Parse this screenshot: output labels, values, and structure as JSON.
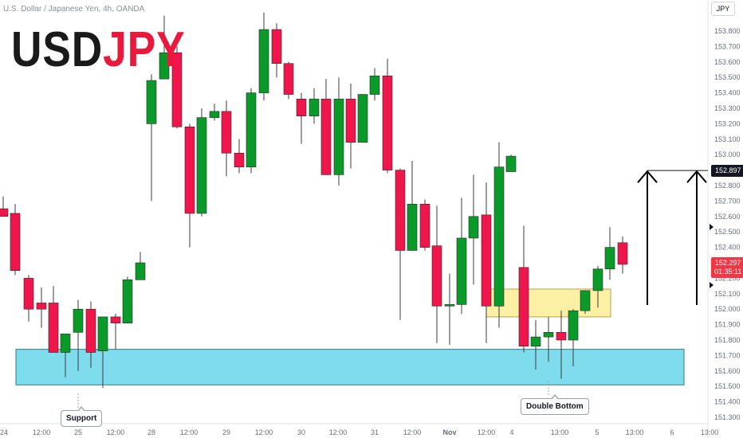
{
  "header": {
    "symbol_line": "U.S. Dollar / Japanese Yen, 4h, OANDA",
    "title_base": "USD",
    "title_quote": "JPY",
    "currency": "JPY"
  },
  "colors": {
    "bull": "#0a9a2a",
    "bear": "#f0164c",
    "support_zone": "#7fdcec",
    "resistance_zone": "#fcf0a5",
    "title_quote": "#e8193c"
  },
  "price_labels": {
    "target": "152.897",
    "current": "152.297",
    "countdown": "01:35:11"
  },
  "annotations": {
    "support": "Support",
    "double_bottom": "Double Bottom"
  },
  "chart_data": {
    "type": "candlestick",
    "title": "USDJPY",
    "timeframe": "4h",
    "ylim": [
      151.25,
      153.85
    ],
    "y_ticks": [
      "151.300",
      "151.400",
      "151.500",
      "151.600",
      "151.700",
      "151.800",
      "151.900",
      "152.000",
      "152.100",
      "152.200",
      "152.300",
      "152.400",
      "152.500",
      "152.600",
      "152.700",
      "152.800",
      "152.900",
      "153.000",
      "153.100",
      "153.200",
      "153.300",
      "153.400",
      "153.500",
      "153.600",
      "153.700",
      "153.800"
    ],
    "x_ticks": [
      "24",
      "12:00",
      "25",
      "12:00",
      "28",
      "12:00",
      "29",
      "12:00",
      "30",
      "12:00",
      "31",
      "12:00",
      "Nov",
      "12:00",
      "4",
      "13:00",
      "5",
      "13:00",
      "6",
      "13:00"
    ],
    "candles": [
      {
        "o": 152.65,
        "h": 152.73,
        "l": 152.6,
        "c": 152.6
      },
      {
        "o": 152.62,
        "h": 152.68,
        "l": 152.22,
        "c": 152.25
      },
      {
        "o": 152.2,
        "h": 152.22,
        "l": 151.92,
        "c": 152.0
      },
      {
        "o": 152.04,
        "h": 152.14,
        "l": 151.88,
        "c": 152.0
      },
      {
        "o": 152.04,
        "h": 152.15,
        "l": 151.72,
        "c": 151.72
      },
      {
        "o": 151.72,
        "h": 151.84,
        "l": 151.56,
        "c": 151.84
      },
      {
        "o": 151.85,
        "h": 152.06,
        "l": 151.6,
        "c": 152.0
      },
      {
        "o": 152.0,
        "h": 152.05,
        "l": 151.62,
        "c": 151.72
      },
      {
        "o": 151.73,
        "h": 151.95,
        "l": 151.49,
        "c": 151.95
      },
      {
        "o": 151.95,
        "h": 151.97,
        "l": 151.74,
        "c": 151.91
      },
      {
        "o": 151.91,
        "h": 152.21,
        "l": 151.91,
        "c": 152.19
      },
      {
        "o": 152.19,
        "h": 152.37,
        "l": 152.19,
        "c": 152.3
      },
      {
        "o": 153.2,
        "h": 153.52,
        "l": 152.7,
        "c": 153.48
      },
      {
        "o": 153.49,
        "h": 153.9,
        "l": 153.5,
        "c": 153.66
      },
      {
        "o": 153.66,
        "h": 153.7,
        "l": 153.17,
        "c": 153.18
      },
      {
        "o": 153.18,
        "h": 153.2,
        "l": 152.4,
        "c": 152.62
      },
      {
        "o": 152.62,
        "h": 153.3,
        "l": 152.6,
        "c": 153.24
      },
      {
        "o": 153.24,
        "h": 153.33,
        "l": 153.22,
        "c": 153.28
      },
      {
        "o": 153.28,
        "h": 153.35,
        "l": 152.86,
        "c": 153.01
      },
      {
        "o": 153.01,
        "h": 153.1,
        "l": 152.88,
        "c": 152.92
      },
      {
        "o": 152.92,
        "h": 153.43,
        "l": 152.88,
        "c": 153.4
      },
      {
        "o": 153.4,
        "h": 153.92,
        "l": 153.35,
        "c": 153.81
      },
      {
        "o": 153.81,
        "h": 153.85,
        "l": 153.5,
        "c": 153.59
      },
      {
        "o": 153.59,
        "h": 153.6,
        "l": 153.36,
        "c": 153.39
      },
      {
        "o": 153.36,
        "h": 153.4,
        "l": 153.07,
        "c": 153.25
      },
      {
        "o": 153.25,
        "h": 153.43,
        "l": 153.2,
        "c": 153.36
      },
      {
        "o": 153.36,
        "h": 153.49,
        "l": 152.88,
        "c": 152.87
      },
      {
        "o": 152.87,
        "h": 153.5,
        "l": 152.8,
        "c": 153.36
      },
      {
        "o": 153.36,
        "h": 153.46,
        "l": 152.91,
        "c": 153.08
      },
      {
        "o": 153.08,
        "h": 153.39,
        "l": 153.08,
        "c": 153.39
      },
      {
        "o": 153.39,
        "h": 153.56,
        "l": 153.35,
        "c": 153.51
      },
      {
        "o": 153.51,
        "h": 153.62,
        "l": 152.88,
        "c": 152.9
      },
      {
        "o": 152.9,
        "h": 152.91,
        "l": 151.93,
        "c": 152.38
      },
      {
        "o": 152.38,
        "h": 152.96,
        "l": 152.4,
        "c": 152.68
      },
      {
        "o": 152.68,
        "h": 152.71,
        "l": 152.38,
        "c": 152.4
      },
      {
        "o": 152.41,
        "h": 152.67,
        "l": 151.78,
        "c": 152.02
      },
      {
        "o": 152.02,
        "h": 152.23,
        "l": 151.77,
        "c": 152.03
      },
      {
        "o": 152.03,
        "h": 152.72,
        "l": 151.97,
        "c": 152.46
      },
      {
        "o": 152.46,
        "h": 152.87,
        "l": 152.16,
        "c": 152.6
      },
      {
        "o": 152.61,
        "h": 152.82,
        "l": 151.78,
        "c": 152.02
      },
      {
        "o": 152.02,
        "h": 153.08,
        "l": 151.88,
        "c": 152.92
      },
      {
        "o": 152.89,
        "h": 153.0,
        "l": 152.9,
        "c": 152.99
      },
      {
        "o": 152.27,
        "h": 152.54,
        "l": 151.72,
        "c": 151.76
      },
      {
        "o": 151.76,
        "h": 151.93,
        "l": 151.61,
        "c": 151.82
      },
      {
        "o": 151.82,
        "h": 151.95,
        "l": 151.66,
        "c": 151.85
      },
      {
        "o": 151.85,
        "h": 151.99,
        "l": 151.55,
        "c": 151.8
      },
      {
        "o": 151.8,
        "h": 152.0,
        "l": 151.63,
        "c": 151.99
      },
      {
        "o": 151.99,
        "h": 152.12,
        "l": 151.97,
        "c": 152.12
      },
      {
        "o": 152.12,
        "h": 152.28,
        "l": 152.01,
        "c": 152.26
      },
      {
        "o": 152.26,
        "h": 152.53,
        "l": 152.19,
        "c": 152.4
      },
      {
        "o": 152.43,
        "h": 152.47,
        "l": 152.23,
        "c": 152.29
      }
    ],
    "zones": [
      {
        "name": "support",
        "from": 151.51,
        "to": 151.74
      },
      {
        "name": "double-bottom-resistance",
        "from": 151.95,
        "to": 152.13
      }
    ],
    "target_level": 152.897
  }
}
